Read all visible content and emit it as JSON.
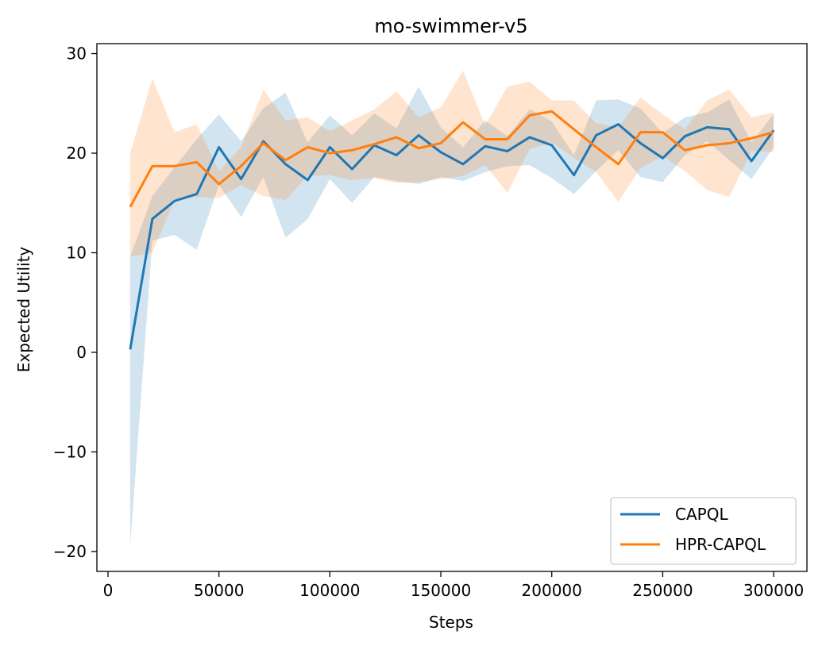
{
  "chart_data": {
    "type": "line",
    "title": "mo-swimmer-v5",
    "xlabel": "Steps",
    "ylabel": "Expected Utility",
    "xlim": [
      -5000,
      315000
    ],
    "ylim": [
      -22,
      31
    ],
    "xticks": [
      0,
      50000,
      100000,
      150000,
      200000,
      250000,
      300000
    ],
    "xtick_labels": [
      "0",
      "50000",
      "100000",
      "150000",
      "200000",
      "250000",
      "300000"
    ],
    "yticks": [
      -20,
      -10,
      0,
      10,
      20,
      30
    ],
    "ytick_labels": [
      "−20",
      "−10",
      "0",
      "10",
      "20",
      "30"
    ],
    "legend_position": "lower-right",
    "x": [
      10000,
      20000,
      30000,
      40000,
      50000,
      60000,
      70000,
      80000,
      90000,
      100000,
      110000,
      120000,
      130000,
      140000,
      150000,
      160000,
      170000,
      180000,
      190000,
      200000,
      210000,
      220000,
      230000,
      240000,
      250000,
      260000,
      270000,
      280000,
      290000,
      300000
    ],
    "series": [
      {
        "name": "CAPQL",
        "color": "#1f77b4",
        "values": [
          0.3,
          13.4,
          15.2,
          15.9,
          20.6,
          17.4,
          21.2,
          18.9,
          17.3,
          20.6,
          18.4,
          20.8,
          19.8,
          21.8,
          20.1,
          18.9,
          20.7,
          20.2,
          21.6,
          20.8,
          17.8,
          21.8,
          22.9,
          21.0,
          19.5,
          21.7,
          22.6,
          22.4,
          19.2,
          22.3
        ],
        "lower": [
          -19.5,
          11.2,
          11.8,
          10.3,
          16.8,
          13.6,
          17.6,
          11.5,
          13.4,
          17.4,
          15.0,
          17.6,
          17.2,
          16.9,
          17.6,
          17.2,
          18.1,
          18.7,
          18.8,
          17.5,
          15.9,
          18.2,
          20.3,
          17.6,
          17.1,
          19.8,
          21.2,
          19.3,
          17.4,
          20.6
        ],
        "upper": [
          9.6,
          15.7,
          18.6,
          21.4,
          23.9,
          21.2,
          24.5,
          26.1,
          21.1,
          23.8,
          21.8,
          24.0,
          22.5,
          26.7,
          22.6,
          20.6,
          23.3,
          21.7,
          24.4,
          23.2,
          19.8,
          25.3,
          25.4,
          24.5,
          22.0,
          23.6,
          24.1,
          25.4,
          21.1,
          23.9
        ]
      },
      {
        "name": "HPR-CAPQL",
        "color": "#ff7f0e",
        "values": [
          14.6,
          18.7,
          18.7,
          19.1,
          16.9,
          18.7,
          21.0,
          19.3,
          20.6,
          20.0,
          20.3,
          20.9,
          21.6,
          20.5,
          21.0,
          23.1,
          21.4,
          21.4,
          23.8,
          24.2,
          22.4,
          20.6,
          18.9,
          22.1,
          22.1,
          20.3,
          20.8,
          21.0,
          21.5,
          22.1
        ],
        "lower": [
          9.6,
          10.0,
          15.3,
          15.6,
          15.5,
          16.8,
          15.7,
          15.3,
          17.7,
          17.8,
          17.3,
          17.5,
          17.0,
          17.1,
          17.4,
          17.7,
          18.8,
          16.0,
          20.4,
          21.1,
          19.5,
          18.1,
          15.1,
          18.5,
          19.7,
          18.2,
          16.3,
          15.6,
          20.2,
          20.1
        ],
        "upper": [
          20.0,
          27.5,
          22.1,
          22.9,
          18.2,
          20.6,
          26.4,
          23.3,
          23.6,
          22.2,
          23.3,
          24.4,
          26.2,
          23.6,
          24.6,
          28.3,
          22.8,
          26.7,
          27.2,
          25.3,
          25.3,
          23.0,
          22.6,
          25.6,
          23.9,
          22.4,
          25.3,
          26.4,
          23.6,
          24.1
        ]
      }
    ]
  }
}
